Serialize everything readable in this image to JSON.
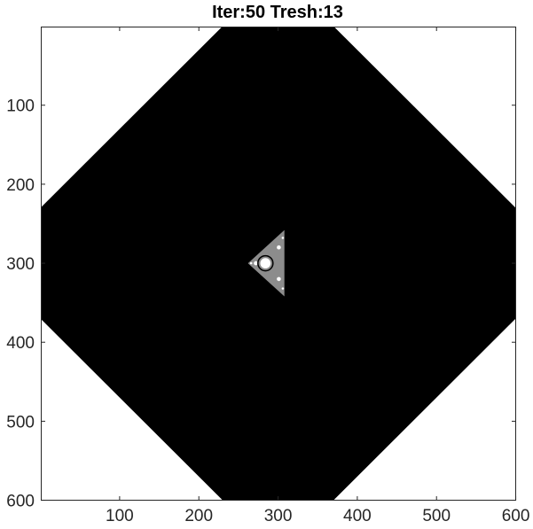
{
  "chart_data": {
    "type": "heatmap",
    "title": "Iter:50 Tresh:13",
    "xlabel": "",
    "ylabel": "",
    "xlim": [
      0.5,
      600.5
    ],
    "ylim": [
      0.5,
      600.5
    ],
    "y_reversed": true,
    "grid": false,
    "x_ticks": [
      100,
      200,
      300,
      400,
      500,
      600
    ],
    "x_tick_labels": [
      "100",
      "200",
      "300",
      "400",
      "500",
      "600"
    ],
    "y_ticks": [
      100,
      200,
      300,
      400,
      500,
      600
    ],
    "y_tick_labels": [
      "100",
      "200",
      "300",
      "400",
      "500",
      "600"
    ],
    "colormap": [
      "#ffffff",
      "#000000"
    ],
    "mask": {
      "description": "binary escape-time fractal mask",
      "outer_region": {
        "center": [
          300,
          300
        ],
        "shape": "clipped octagon",
        "diagonal_cut": 370,
        "value": "black"
      },
      "inner_fractal": {
        "center": [
          300,
          300
        ],
        "shape": "three-fold tricorn cluster",
        "value": "white"
      }
    }
  }
}
